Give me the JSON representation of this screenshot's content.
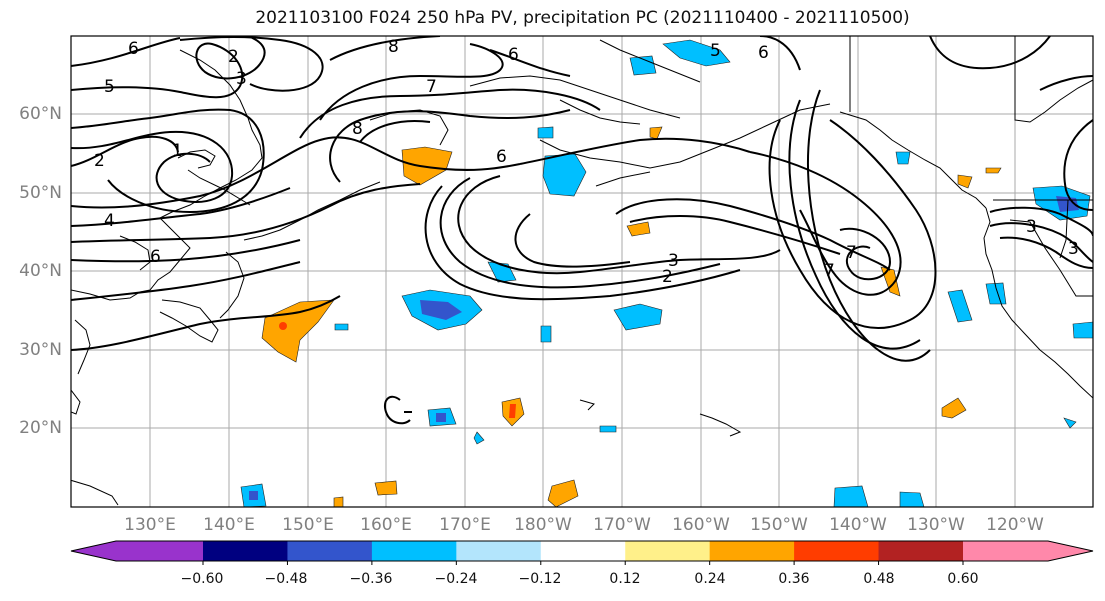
{
  "title": "2021103100 F024 250 hPa PV, precipitation PC (2021110400 - 2021110500)",
  "lat_labels": [
    "60°N",
    "50°N",
    "40°N",
    "30°N",
    "20°N"
  ],
  "lon_labels": [
    "130°E",
    "140°E",
    "150°E",
    "160°E",
    "170°E",
    "180°W",
    "170°W",
    "160°W",
    "150°W",
    "140°W",
    "130°W",
    "120°W"
  ],
  "contour_labels": [
    "6",
    "2",
    "3",
    "5",
    "8",
    "6",
    "5",
    "6",
    "7",
    "8",
    "2",
    "1",
    "4",
    "6",
    "7",
    "6",
    "3",
    "2",
    "7",
    "3",
    "3"
  ],
  "colorbar": {
    "ticks": [
      "−0.60",
      "−0.48",
      "−0.36",
      "−0.24",
      "−0.12",
      "0.12",
      "0.24",
      "0.36",
      "0.48",
      "0.60"
    ],
    "colors": [
      "#9933cc",
      "#000080",
      "#3355cc",
      "#00bfff",
      "#b3e5fc",
      "#ffffff",
      "#fff08a",
      "#ffa500",
      "#ff3d00",
      "#b22222",
      "#ff88aa"
    ]
  }
}
